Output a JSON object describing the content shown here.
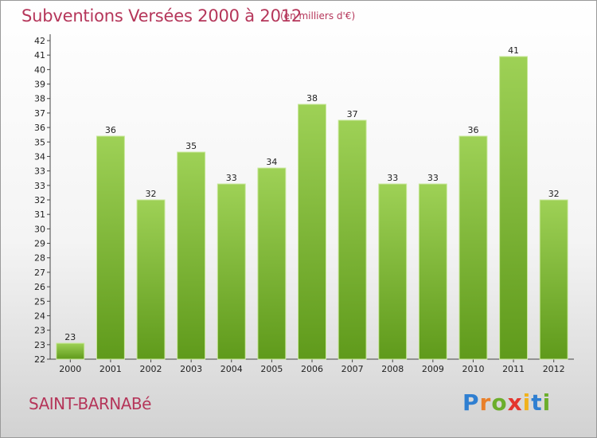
{
  "chart_data": {
    "type": "bar",
    "title": "Subventions Versées 2000 à 2012",
    "subtitle": "(en milliers d'€)",
    "categories": [
      "2000",
      "2001",
      "2002",
      "2003",
      "2004",
      "2005",
      "2006",
      "2007",
      "2008",
      "2009",
      "2010",
      "2011",
      "2012"
    ],
    "values": [
      23,
      36,
      32,
      35,
      33,
      34,
      38,
      37,
      33,
      33,
      36,
      41,
      32
    ],
    "ylim": [
      22,
      42
    ],
    "yticks": [
      "22",
      "23",
      "23",
      "24",
      "25",
      "26",
      "27",
      "28",
      "29",
      "30",
      "31",
      "32",
      "33",
      "33",
      "34",
      "35",
      "36",
      "37",
      "38",
      "39",
      "40",
      "41",
      "42"
    ],
    "grid": false,
    "bar_color_top": "#9ed156",
    "bar_color_bottom": "#5f9a1b"
  },
  "footer": {
    "commune": "SAINT-BARNABé"
  },
  "logo": {
    "letters": [
      "P",
      "r",
      "o",
      "x",
      "i",
      "t",
      "i"
    ],
    "colors": [
      "#2f7fd1",
      "#e9802a",
      "#6cae2c",
      "#e4352d",
      "#f0b21d",
      "#2f7fd1",
      "#6cae2c"
    ]
  }
}
